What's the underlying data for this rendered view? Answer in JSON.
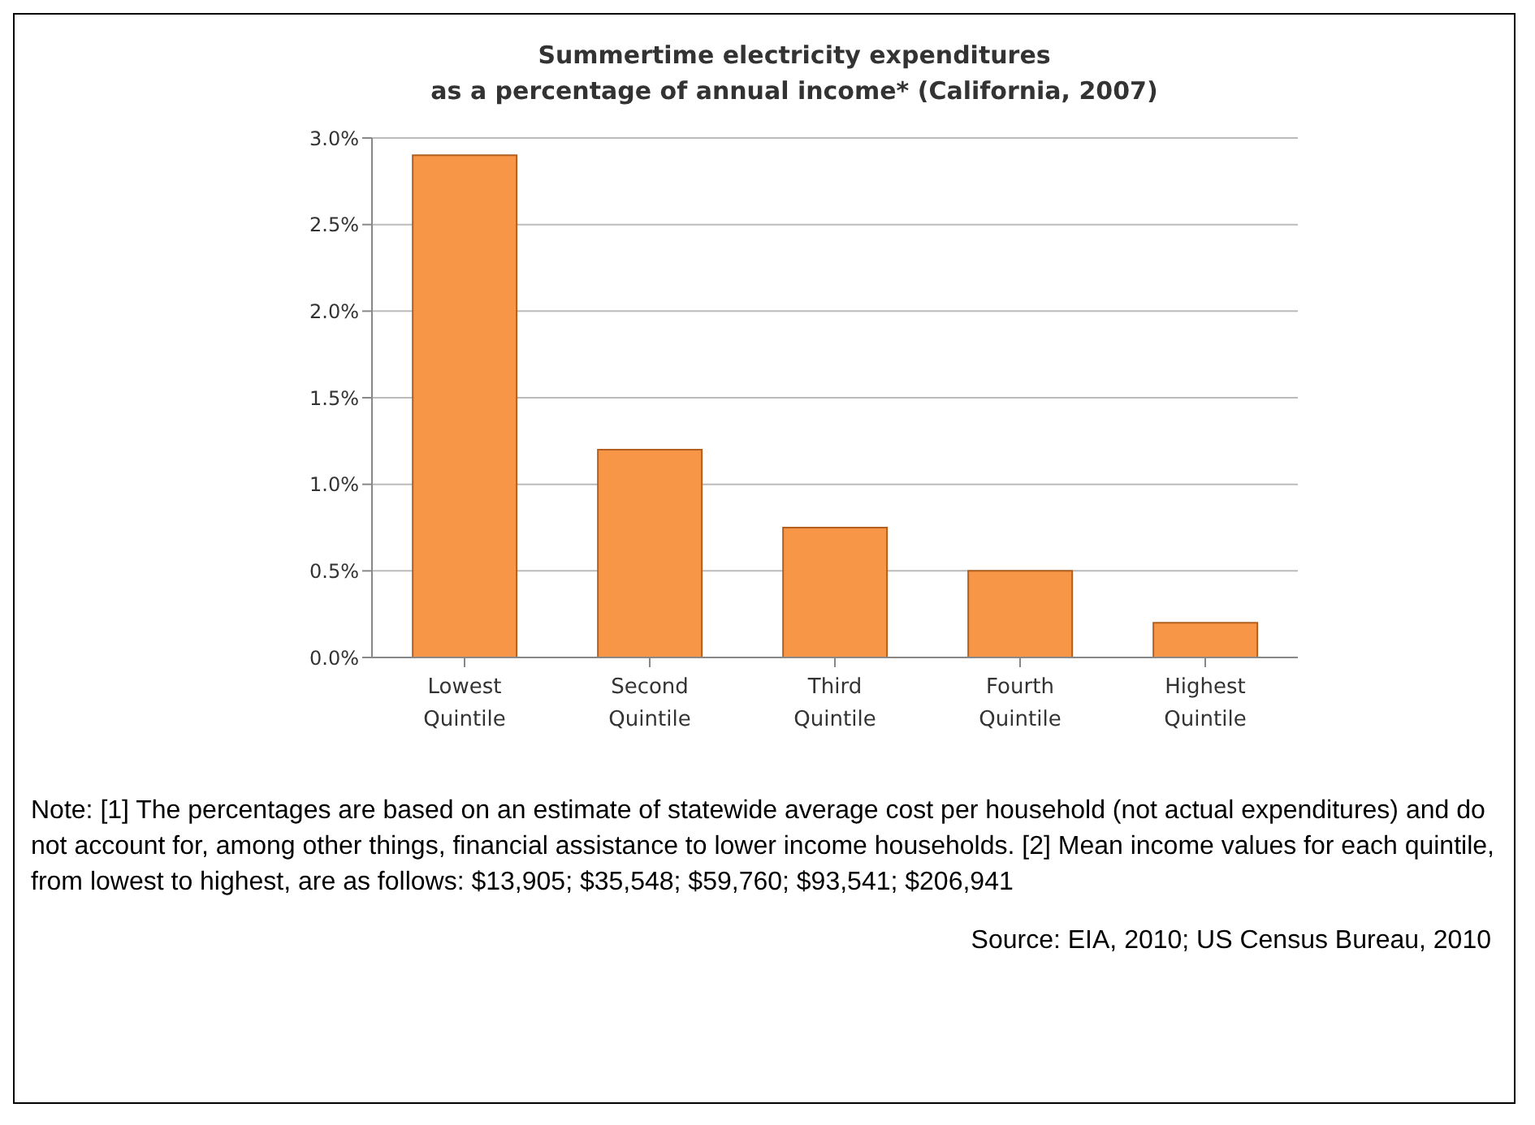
{
  "chart_data": {
    "type": "bar",
    "title": "Summertime electricity expenditures\nas a percentage of annual income* (California, 2007)",
    "categories": [
      "Lowest Quintile",
      "Second Quintile",
      "Third Quintile",
      "Fourth Quintile",
      "Highest Quintile"
    ],
    "values": [
      2.9,
      1.2,
      0.75,
      0.5,
      0.2
    ],
    "color": "#f79646",
    "ylim": [
      0,
      3
    ],
    "yticks": [
      {
        "value": 0,
        "label": "0.0%"
      },
      {
        "value": 0.5,
        "label": "0.5%"
      },
      {
        "value": 1,
        "label": "1.0%"
      },
      {
        "value": 1.5,
        "label": "1.5%"
      },
      {
        "value": 2,
        "label": "2.0%"
      },
      {
        "value": 2.5,
        "label": "2.5%"
      },
      {
        "value": 3,
        "label": "3.0%"
      }
    ],
    "grid": "y",
    "annotations": [
      "Note:  [1] The percentages are based on an estimate of statewide average cost per household (not actual expenditures) and do not account for, among other things, financial assistance to lower income households.  [2] Mean income values for each quintile, from lowest to highest, are as follows: $13,905; $35,548; $59,760; $93,541; $206,941",
      "Source:  EIA, 2010; US Census Bureau, 2010"
    ]
  }
}
